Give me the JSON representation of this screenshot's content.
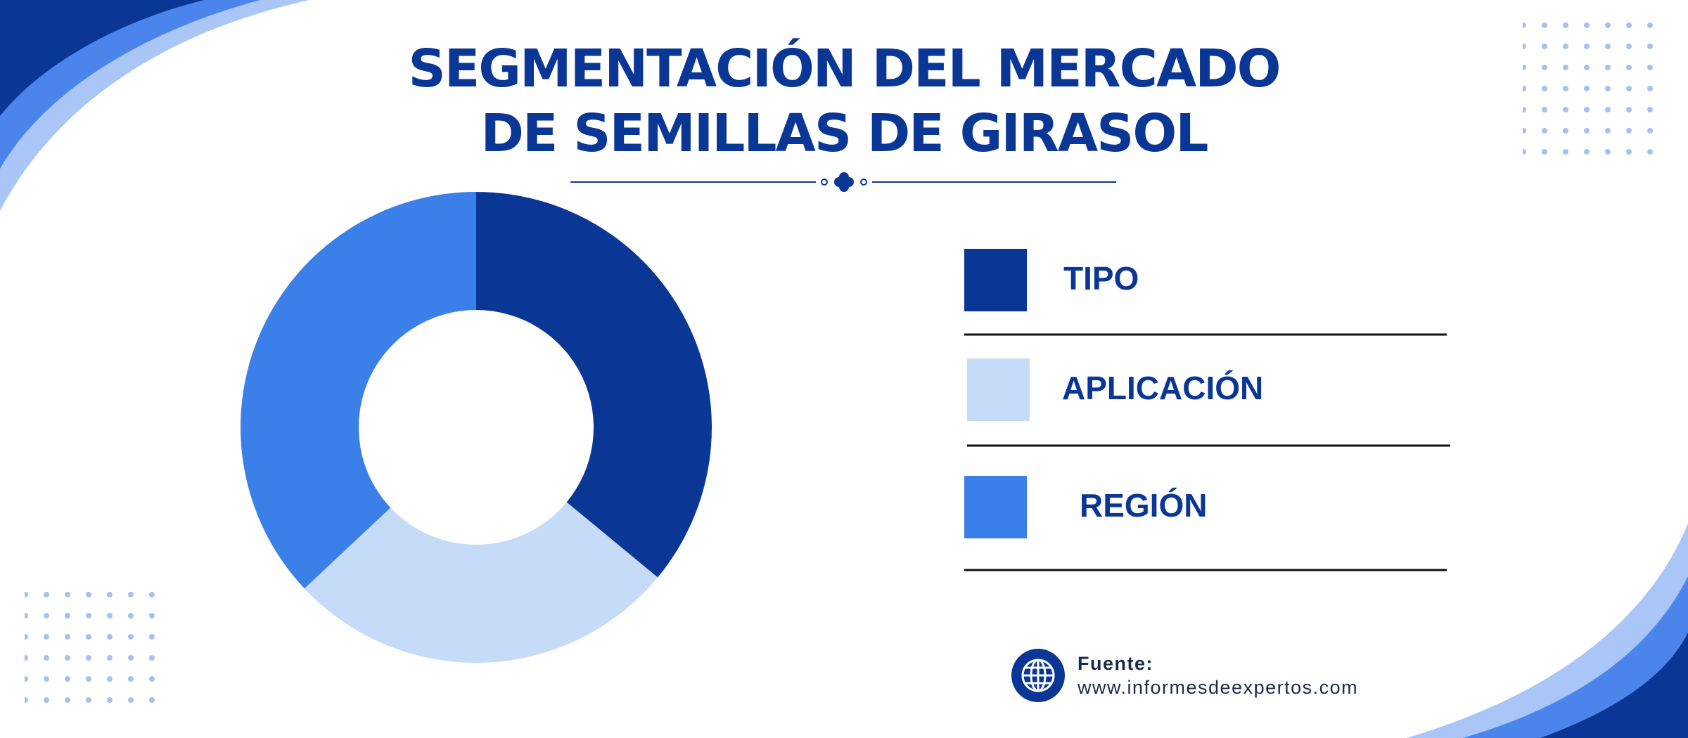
{
  "chart_data": {
    "type": "donut",
    "title": "SEGMENTACIÓN DEL MERCADO DE SEMILLAS DE GIRASOL",
    "categories": [
      "TIPO",
      "APLICACIÓN",
      "REGIÓN"
    ],
    "values": [
      36,
      27,
      37
    ],
    "colors": [
      "#0a3696",
      "#c5dbf7",
      "#3b7fe8"
    ]
  },
  "source": {
    "label": "Fuente:",
    "url": "www.informesdeexpertos.com"
  }
}
